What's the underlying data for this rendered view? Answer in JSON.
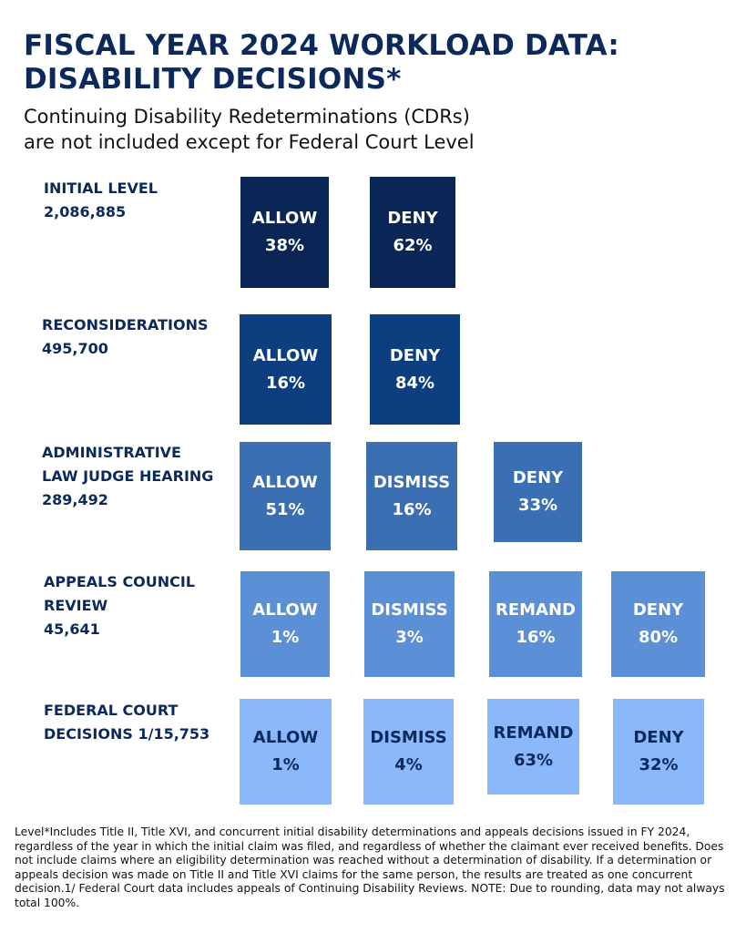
{
  "header": {
    "title_line1": "FISCAL YEAR 2024 WORKLOAD DATA:",
    "title_line2": "DISABILITY DECISIONS*",
    "subtitle_line1": "Continuing Disability Redeterminations (CDRs)",
    "subtitle_line2": "are not included except for Federal Court Level"
  },
  "levels": [
    {
      "label_lines": [
        "INITIAL LEVEL",
        "2,086,885"
      ],
      "outcomes": [
        {
          "label": "ALLOW",
          "value": "38%"
        },
        {
          "label": "DENY",
          "value": "62%"
        }
      ]
    },
    {
      "label_lines": [
        "RECONSIDERATIONS",
        "495,700"
      ],
      "outcomes": [
        {
          "label": "ALLOW",
          "value": "16%"
        },
        {
          "label": "DENY",
          "value": "84%"
        }
      ]
    },
    {
      "label_lines": [
        "ADMINISTRATIVE",
        "LAW JUDGE HEARING",
        "289,492"
      ],
      "outcomes": [
        {
          "label": "ALLOW",
          "value": "51%"
        },
        {
          "label": "DISMISS",
          "value": "16%"
        },
        {
          "label": "DENY",
          "value": "33%"
        }
      ]
    },
    {
      "label_lines": [
        "APPEALS COUNCIL",
        "REVIEW",
        "45,641"
      ],
      "outcomes": [
        {
          "label": "ALLOW",
          "value": "1%"
        },
        {
          "label": "DISMISS",
          "value": "3%"
        },
        {
          "label": "REMAND",
          "value": "16%"
        },
        {
          "label": "DENY",
          "value": "80%"
        }
      ]
    },
    {
      "label_lines": [
        "FEDERAL COURT",
        "DECISIONS 1/15,753"
      ],
      "outcomes": [
        {
          "label": "ALLOW",
          "value": "1%"
        },
        {
          "label": "DISMISS",
          "value": "4%"
        },
        {
          "label": "REMAND",
          "value": "63%"
        },
        {
          "label": "DENY",
          "value": "32%"
        }
      ]
    }
  ],
  "colors": {
    "level1": "#0a2657",
    "level2": "#0d3e80",
    "level3": "#3a6fb4",
    "level4": "#5b8fd6",
    "level5": "#8ab8fb",
    "heading": "#0b2a5b"
  },
  "footnote": "Level*Includes Title II, Title XVI, and concurrent initial disability determinations and appeals decisions issued in FY 2024, regardless of the year in which the initial claim was filed, and regardless of whether the claimant ever received benefits. Does not include claims where an eligibility determination was reached without a determination of disability. If a determination or appeals decision was made on Title II and Title XVI claims for the same person, the results are treated as one concurrent decision.1/ Federal Court data includes appeals of Continuing Disability Reviews. NOTE: Due to rounding, data may not always total 100%."
}
